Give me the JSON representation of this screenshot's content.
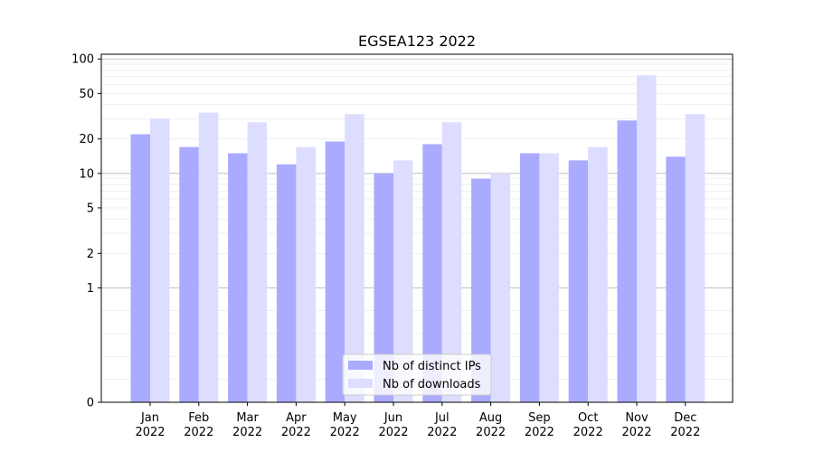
{
  "chart_data": {
    "type": "bar",
    "title": "EGSEA123 2022",
    "xlabel": "",
    "ylabel": "",
    "y_scale": "symlog",
    "ylim": [
      0,
      110
    ],
    "y_ticks": [
      0,
      1,
      2,
      5,
      10,
      20,
      50,
      100
    ],
    "grid": true,
    "legend_position": "bottom-center",
    "categories": [
      [
        "Jan",
        "2022"
      ],
      [
        "Feb",
        "2022"
      ],
      [
        "Mar",
        "2022"
      ],
      [
        "Apr",
        "2022"
      ],
      [
        "May",
        "2022"
      ],
      [
        "Jun",
        "2022"
      ],
      [
        "Jul",
        "2022"
      ],
      [
        "Aug",
        "2022"
      ],
      [
        "Sep",
        "2022"
      ],
      [
        "Oct",
        "2022"
      ],
      [
        "Nov",
        "2022"
      ],
      [
        "Dec",
        "2022"
      ]
    ],
    "series": [
      {
        "name": "Nb of distinct IPs",
        "color": "#aaaaff",
        "values": [
          22,
          17,
          15,
          12,
          19,
          10,
          18,
          9,
          15,
          13,
          29,
          14
        ]
      },
      {
        "name": "Nb of downloads",
        "color": "#ddddff",
        "values": [
          30,
          34,
          28,
          17,
          33,
          13,
          28,
          10,
          15,
          17,
          72,
          33
        ]
      }
    ]
  }
}
